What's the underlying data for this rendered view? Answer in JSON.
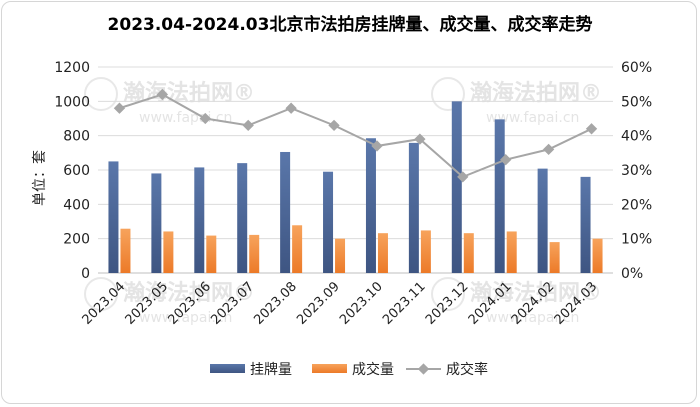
{
  "watermark": {
    "name": "瀚海法拍网",
    "mark": "®",
    "url": "www.fapai.cn"
  },
  "chart_data": {
    "type": "bar",
    "title": "2023.04-2024.03北京市法拍房挂牌量、成交量、成交率走势",
    "ylabel": "单位：套",
    "ylim": [
      0,
      1200
    ],
    "y2lim": [
      0,
      0.6
    ],
    "yticks": [
      "0",
      "200",
      "400",
      "600",
      "800",
      "1000",
      "1200"
    ],
    "y2ticks": [
      "0%",
      "10%",
      "20%",
      "30%",
      "40%",
      "50%",
      "60%"
    ],
    "legend_position": "bottom",
    "grid": true,
    "categories": [
      "2023.04",
      "2023.05",
      "2023.06",
      "2023.07",
      "2023.08",
      "2023.09",
      "2023.10",
      "2023.11",
      "2023.12",
      "2024.01",
      "2024.02",
      "2024.03"
    ],
    "series": [
      {
        "name": "挂牌量",
        "type": "bar",
        "axis": "left",
        "color": "#4a6492",
        "values": [
          650,
          580,
          615,
          640,
          705,
          590,
          785,
          758,
          1000,
          895,
          608,
          560
        ]
      },
      {
        "name": "成交量",
        "type": "bar",
        "axis": "left",
        "color": "#f0883a",
        "values": [
          258,
          242,
          218,
          222,
          278,
          200,
          232,
          248,
          232,
          242,
          180,
          200
        ]
      },
      {
        "name": "成交率",
        "type": "line",
        "axis": "right",
        "color": "#a6a6a6",
        "values": [
          0.48,
          0.52,
          0.45,
          0.43,
          0.48,
          0.43,
          0.37,
          0.39,
          0.28,
          0.33,
          0.36,
          0.42
        ]
      }
    ]
  }
}
